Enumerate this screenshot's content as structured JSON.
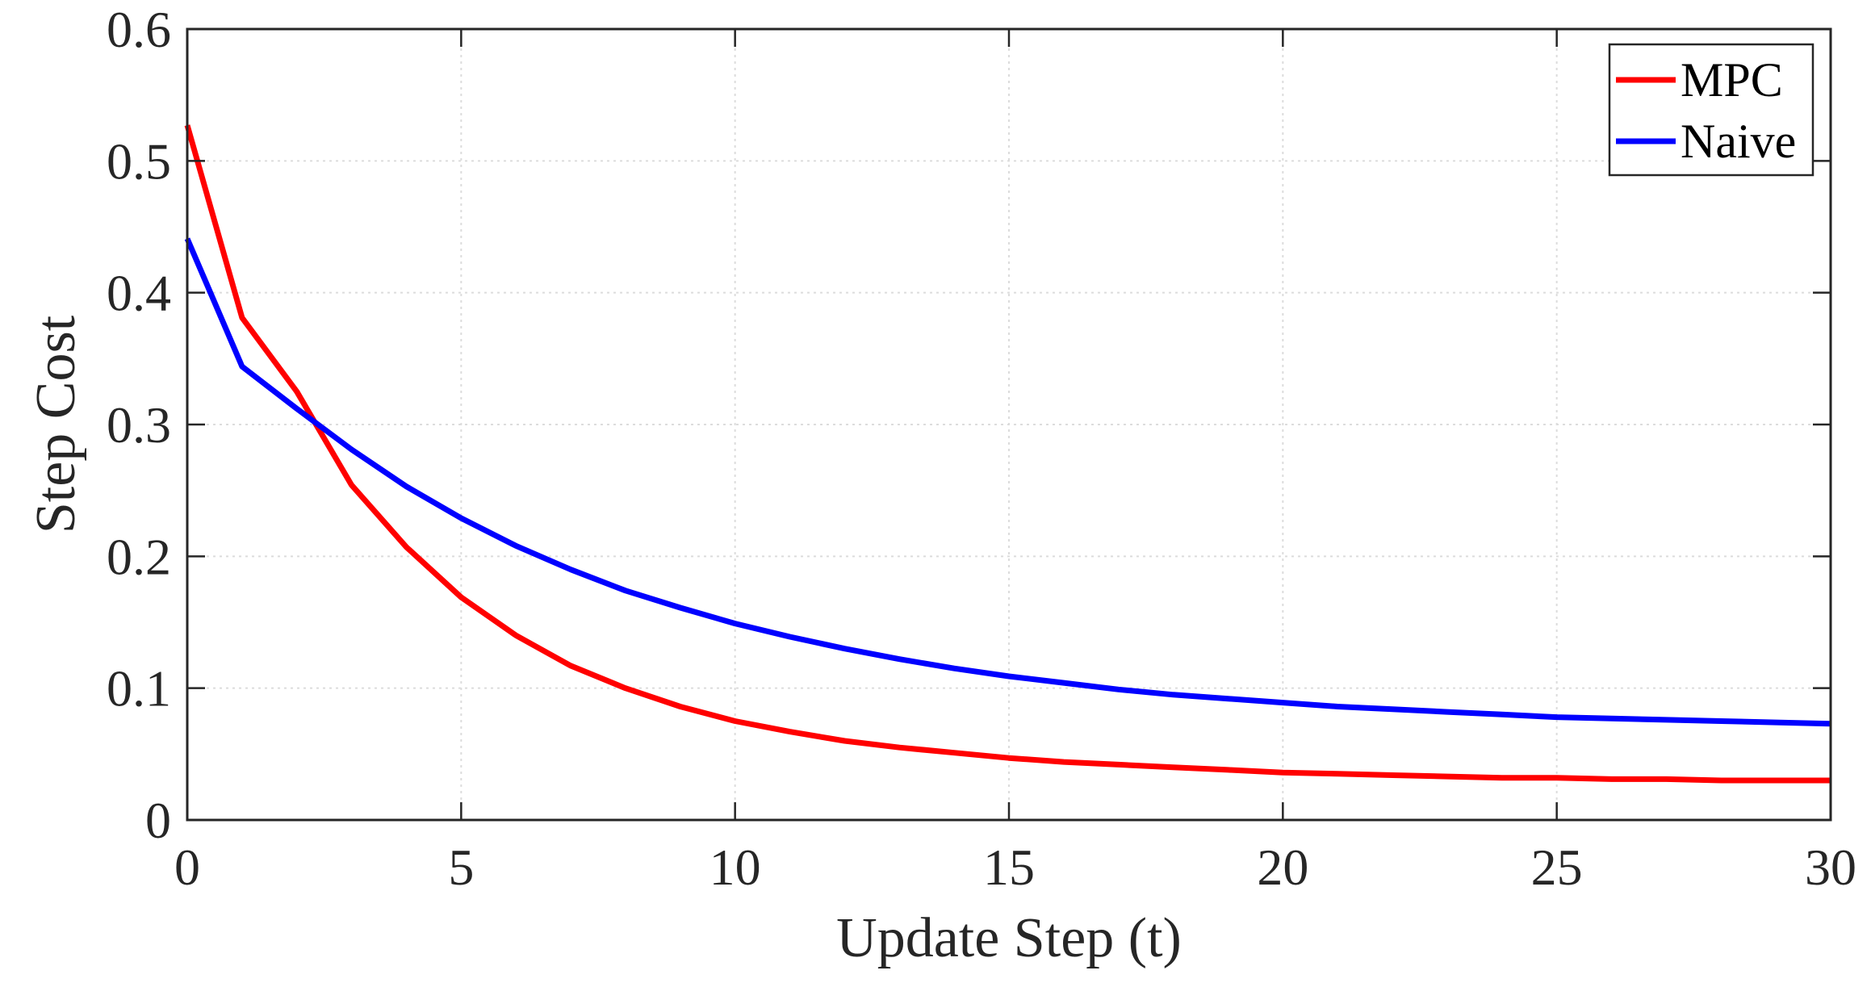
{
  "chart_data": {
    "type": "line",
    "title": "",
    "xlabel": "Update Step (t)",
    "ylabel": "Step Cost",
    "xlim": [
      0,
      30
    ],
    "ylim": [
      0,
      0.6
    ],
    "xticks": [
      0,
      5,
      10,
      15,
      20,
      25,
      30
    ],
    "xtick_labels": [
      "0",
      "5",
      "10",
      "15",
      "20",
      "25",
      "30"
    ],
    "yticks": [
      0,
      0.1,
      0.2,
      0.3,
      0.4,
      0.5,
      0.6
    ],
    "ytick_labels": [
      "0",
      "0.1",
      "0.2",
      "0.3",
      "0.4",
      "0.5",
      "0.6"
    ],
    "grid": true,
    "legend_position": "top-right",
    "x": [
      0,
      1,
      2,
      3,
      4,
      5,
      6,
      7,
      8,
      9,
      10,
      11,
      12,
      13,
      14,
      15,
      16,
      17,
      18,
      19,
      20,
      21,
      22,
      23,
      24,
      25,
      26,
      27,
      28,
      29,
      30
    ],
    "series": [
      {
        "name": "MPC",
        "color": "#ff0000",
        "values": [
          0.527,
          0.381,
          0.325,
          0.254,
          0.207,
          0.169,
          0.14,
          0.117,
          0.1,
          0.086,
          0.075,
          0.067,
          0.06,
          0.055,
          0.051,
          0.047,
          0.044,
          0.042,
          0.04,
          0.038,
          0.036,
          0.035,
          0.034,
          0.033,
          0.032,
          0.032,
          0.031,
          0.031,
          0.03,
          0.03,
          0.03
        ]
      },
      {
        "name": "Naive",
        "color": "#0000ff",
        "values": [
          0.441,
          0.344,
          0.312,
          0.281,
          0.253,
          0.229,
          0.208,
          0.19,
          0.174,
          0.161,
          0.149,
          0.139,
          0.13,
          0.122,
          0.115,
          0.109,
          0.104,
          0.099,
          0.095,
          0.092,
          0.089,
          0.086,
          0.084,
          0.082,
          0.08,
          0.078,
          0.077,
          0.076,
          0.075,
          0.074,
          0.073
        ]
      }
    ]
  }
}
